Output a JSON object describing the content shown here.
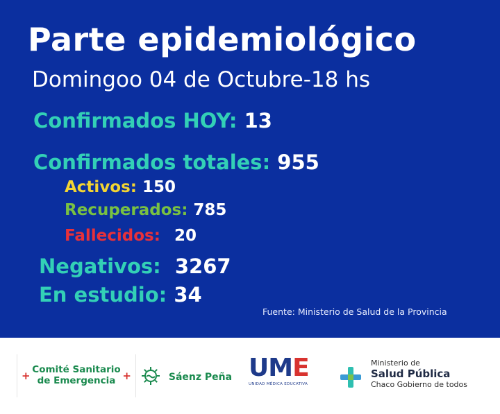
{
  "header": {
    "title": "Parte epidemiológico",
    "subtitle": "Domingoo 04 de Octubre-18 hs"
  },
  "stats": {
    "confirmados_hoy": {
      "label": "Confirmados HOY:",
      "value": "13"
    },
    "confirmados_totales": {
      "label": "Confirmados totales:",
      "value": "955"
    },
    "activos": {
      "label": "Activos:",
      "value": "150"
    },
    "recuperados": {
      "label": "Recuperados:",
      "value": "785"
    },
    "fallecidos": {
      "label": "Fallecidos:",
      "value": "20"
    },
    "negativos": {
      "label": "Negativos:",
      "value": "3267"
    },
    "en_estudio": {
      "label": "En estudio:",
      "value": "34"
    }
  },
  "source": "Fuente: Ministerio de Salud de la Provincia",
  "footer": {
    "comite": {
      "line1": "Comité Sanitario",
      "line2": "de Emergencia"
    },
    "saenz_pena": "Sáenz Peña",
    "ume": {
      "mark_um": "UM",
      "mark_e": "E",
      "subtitle": "UNIDAD MÉDICA EDUCATIVA"
    },
    "ministerio": {
      "line1": "Ministerio de",
      "line2": "Salud Pública",
      "line3": "Chaco Gobierno de todos"
    }
  },
  "colors": {
    "panel": "#0b2f9f",
    "teal": "#33d0b6",
    "yellow": "#f4d532",
    "green": "#79c142",
    "red": "#e8313a"
  }
}
